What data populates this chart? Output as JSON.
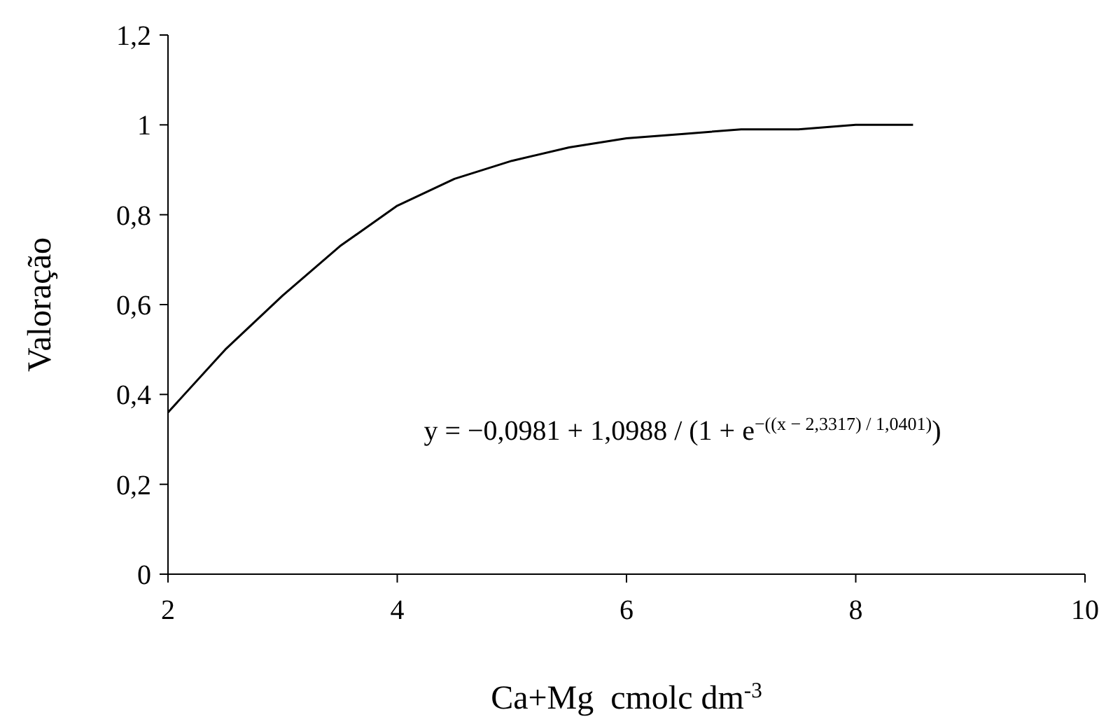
{
  "chart_data": {
    "type": "line",
    "xlabel": "Ca+Mg  cmolc dm$^{-3}$",
    "ylabel": "Valoração",
    "series": [
      {
        "color": "#000000",
        "x": [
          2,
          2.5,
          3,
          3.5,
          4,
          4.5,
          5,
          5.5,
          6,
          6.5,
          7,
          7.5,
          8,
          8.5
        ],
        "values": [
          0.36,
          0.5,
          0.62,
          0.73,
          0.82,
          0.88,
          0.92,
          0.95,
          0.97,
          0.98,
          0.99,
          0.99,
          1.0,
          1.0
        ]
      }
    ],
    "xlim": [
      2,
      10
    ],
    "xticks": [
      2,
      4,
      6,
      8,
      10
    ],
    "ylim": [
      0,
      1.2
    ],
    "yticks": [
      0,
      {
        "value": 0.2,
        "label": "0,2"
      },
      {
        "value": 0.4,
        "label": "0,4"
      },
      {
        "value": 0.6,
        "label": "0,6"
      },
      {
        "value": 0.8,
        "label": "0,8"
      },
      1,
      {
        "value": 1.2,
        "label": "1,2"
      }
    ],
    "annotations": [
      "y = −0,0981 + 1,0988 / (1 + e$^{−((x − 2,3317) / 1,0401)}$)"
    ],
    "grid": false,
    "marker": "none",
    "line_style": "solid"
  }
}
